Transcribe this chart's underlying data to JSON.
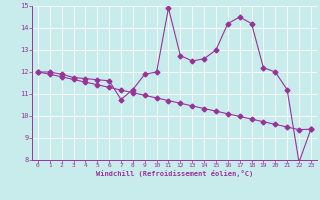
{
  "xlabel": "Windchill (Refroidissement éolien,°C)",
  "background_color": "#c8ecec",
  "line_color": "#993399",
  "x_data": [
    0,
    1,
    2,
    3,
    4,
    5,
    6,
    7,
    8,
    9,
    10,
    11,
    12,
    13,
    14,
    15,
    16,
    17,
    18,
    19,
    20,
    21,
    22,
    23
  ],
  "y_line1": [
    12.0,
    12.0,
    11.9,
    11.75,
    11.7,
    11.65,
    11.6,
    10.75,
    11.2,
    11.9,
    12.0,
    14.9,
    12.75,
    12.5,
    12.6,
    13.0,
    14.2,
    14.5,
    14.2,
    12.2,
    12.0,
    11.2,
    7.9,
    9.4
  ],
  "y_line2": [
    12.0,
    11.9,
    11.78,
    11.66,
    11.54,
    11.42,
    11.3,
    11.18,
    11.06,
    10.94,
    10.82,
    10.7,
    10.58,
    10.46,
    10.34,
    10.22,
    10.1,
    9.98,
    9.86,
    9.74,
    9.62,
    9.5,
    9.38,
    9.4
  ],
  "ylim": [
    8,
    15
  ],
  "xlim": [
    -0.5,
    23.5
  ],
  "yticks": [
    8,
    9,
    10,
    11,
    12,
    13,
    14,
    15
  ],
  "xticks": [
    0,
    1,
    2,
    3,
    4,
    5,
    6,
    7,
    8,
    9,
    10,
    11,
    12,
    13,
    14,
    15,
    16,
    17,
    18,
    19,
    20,
    21,
    22,
    23
  ]
}
